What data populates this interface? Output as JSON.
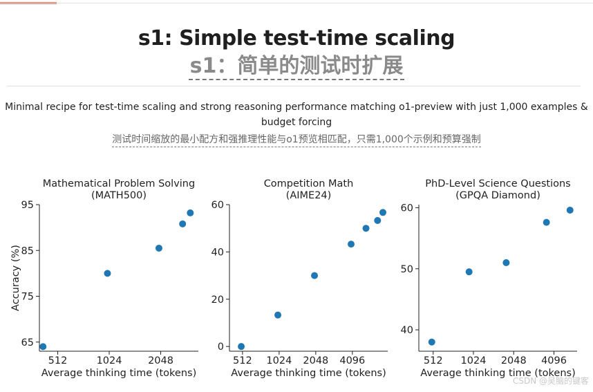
{
  "header": {
    "title_en": "s1: Simple test-time scaling",
    "title_zh": "s1：简单的测试时扩展"
  },
  "subtitle": {
    "en": "Minimal recipe for test-time scaling and strong reasoning performance matching o1-preview with just 1,000 examples & budget forcing",
    "zh": "测试时间缩放的最小配方和强推理性能与o1预览相匹配，只需1,000个示例和预算强制"
  },
  "colors": {
    "point": "#1f77b4",
    "axis": "#1f1f1f"
  },
  "watermark": "CSDN @吴脑的键客",
  "chart_data": [
    {
      "type": "scatter",
      "title": "Mathematical Problem Solving\n(MATH500)",
      "xlabel": "Average thinking time (tokens)",
      "ylabel": "Accuracy (%)",
      "xscale": "log2",
      "xticks": [
        512,
        1024,
        2048
      ],
      "yticks": [
        65,
        75,
        85,
        95
      ],
      "xlim": [
        400,
        3400
      ],
      "ylim": [
        63,
        95
      ],
      "x": [
        420,
        1000,
        2000,
        2750,
        3050
      ],
      "y": [
        64,
        80,
        85.5,
        90.8,
        93.2
      ]
    },
    {
      "type": "scatter",
      "title": "Competition Math\n(AIME24)",
      "xlabel": "Average thinking time (tokens)",
      "ylabel": "",
      "xscale": "log2",
      "xticks": [
        512,
        1024,
        2048,
        4096
      ],
      "yticks": [
        0,
        20,
        40,
        60
      ],
      "xlim": [
        400,
        8000
      ],
      "ylim": [
        -2,
        60
      ],
      "x": [
        500,
        1000,
        2000,
        4000,
        5300,
        6600,
        7300
      ],
      "y": [
        0,
        13.3,
        30,
        43.3,
        50,
        53.3,
        56.7
      ]
    },
    {
      "type": "scatter",
      "title": "PhD-Level Science Questions\n(GPQA Diamond)",
      "xlabel": "Average thinking time (tokens)",
      "ylabel": "",
      "xscale": "log2",
      "xticks": [
        512,
        1024,
        2048,
        4096
      ],
      "yticks": [
        40,
        50,
        60
      ],
      "xlim": [
        400,
        6100
      ],
      "ylim": [
        36.5,
        60.5
      ],
      "x": [
        500,
        950,
        1800,
        3600,
        5400
      ],
      "y": [
        38,
        49.5,
        51,
        57.6,
        59.6
      ]
    }
  ]
}
